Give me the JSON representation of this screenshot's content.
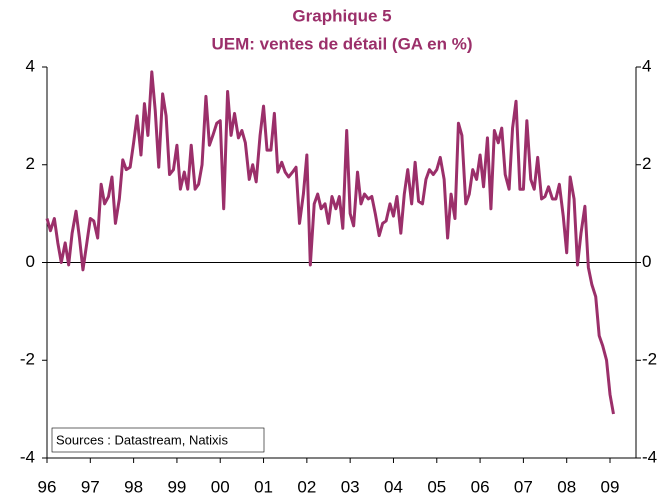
{
  "chart_data": {
    "type": "line",
    "title": "Graphique 5",
    "subtitle": "UEM: ventes de détail (GA en %)",
    "annotation": "Sources : Datastream, Natixis",
    "x": [
      1996,
      1996.08,
      1996.17,
      1996.25,
      1996.33,
      1996.42,
      1996.5,
      1996.58,
      1996.67,
      1996.75,
      1996.83,
      1996.92,
      1997,
      1997.08,
      1997.17,
      1997.25,
      1997.33,
      1997.42,
      1997.5,
      1997.58,
      1997.67,
      1997.75,
      1997.83,
      1997.92,
      1998,
      1998.08,
      1998.17,
      1998.25,
      1998.33,
      1998.42,
      1998.5,
      1998.58,
      1998.67,
      1998.75,
      1998.83,
      1998.92,
      1999,
      1999.08,
      1999.17,
      1999.25,
      1999.33,
      1999.42,
      1999.5,
      1999.58,
      1999.67,
      1999.75,
      1999.83,
      1999.92,
      2000,
      2000.08,
      2000.17,
      2000.25,
      2000.33,
      2000.42,
      2000.5,
      2000.58,
      2000.67,
      2000.75,
      2000.83,
      2000.92,
      2001,
      2001.08,
      2001.17,
      2001.25,
      2001.33,
      2001.42,
      2001.5,
      2001.58,
      2001.67,
      2001.75,
      2001.83,
      2001.92,
      2002,
      2002.08,
      2002.17,
      2002.25,
      2002.33,
      2002.42,
      2002.5,
      2002.58,
      2002.67,
      2002.75,
      2002.83,
      2002.92,
      2003,
      2003.08,
      2003.17,
      2003.25,
      2003.33,
      2003.42,
      2003.5,
      2003.58,
      2003.67,
      2003.75,
      2003.83,
      2003.92,
      2004,
      2004.08,
      2004.17,
      2004.25,
      2004.33,
      2004.42,
      2004.5,
      2004.58,
      2004.67,
      2004.75,
      2004.83,
      2004.92,
      2005,
      2005.08,
      2005.17,
      2005.25,
      2005.33,
      2005.42,
      2005.5,
      2005.58,
      2005.67,
      2005.75,
      2005.83,
      2005.92,
      2006,
      2006.08,
      2006.17,
      2006.25,
      2006.33,
      2006.42,
      2006.5,
      2006.58,
      2006.67,
      2006.75,
      2006.83,
      2006.92,
      2007,
      2007.08,
      2007.17,
      2007.25,
      2007.33,
      2007.42,
      2007.5,
      2007.58,
      2007.67,
      2007.75,
      2007.83,
      2007.92,
      2008,
      2008.08,
      2008.17,
      2008.25,
      2008.33,
      2008.42,
      2008.5,
      2008.58,
      2008.67,
      2008.75,
      2008.83,
      2008.92,
      2009,
      2009.08
    ],
    "series": [
      {
        "name": "UEM",
        "color": "#9b2f6a",
        "values": [
          0.9,
          0.65,
          0.9,
          0.4,
          0.0,
          0.4,
          -0.05,
          0.6,
          1.05,
          0.5,
          -0.15,
          0.4,
          0.9,
          0.85,
          0.5,
          1.6,
          1.2,
          1.35,
          1.75,
          0.8,
          1.3,
          2.1,
          1.9,
          1.95,
          2.45,
          3.0,
          2.2,
          3.25,
          2.6,
          3.9,
          3.1,
          1.95,
          3.45,
          3.0,
          1.8,
          1.9,
          2.4,
          1.5,
          1.85,
          1.5,
          2.4,
          1.5,
          1.6,
          2.0,
          3.4,
          2.4,
          2.6,
          2.85,
          2.9,
          1.1,
          3.5,
          2.6,
          3.05,
          2.55,
          2.7,
          2.45,
          1.7,
          2.0,
          1.65,
          2.6,
          3.2,
          2.3,
          2.3,
          3.05,
          1.85,
          2.05,
          1.85,
          1.75,
          1.85,
          1.95,
          0.8,
          1.4,
          2.2,
          -0.05,
          1.2,
          1.4,
          1.1,
          1.2,
          0.8,
          1.35,
          1.1,
          1.35,
          0.7,
          2.7,
          1.0,
          0.75,
          1.85,
          1.2,
          1.4,
          1.3,
          1.35,
          1.0,
          0.55,
          0.8,
          0.85,
          1.2,
          0.95,
          1.35,
          0.6,
          1.4,
          1.9,
          1.2,
          2.05,
          1.25,
          1.2,
          1.7,
          1.9,
          1.8,
          1.9,
          2.15,
          1.7,
          0.5,
          1.4,
          0.9,
          2.85,
          2.6,
          1.2,
          1.4,
          1.9,
          1.7,
          2.2,
          1.55,
          2.55,
          1.1,
          2.7,
          2.45,
          2.75,
          1.8,
          1.5,
          2.75,
          3.3,
          1.5,
          1.5,
          2.9,
          1.7,
          1.5,
          2.15,
          1.3,
          1.35,
          1.55,
          1.3,
          1.3,
          1.6,
          0.95,
          0.2,
          1.75,
          1.3,
          -0.05,
          0.6,
          1.15,
          -0.1,
          -0.45,
          -0.7,
          -1.5,
          -1.7,
          -2.0,
          -2.7,
          -3.1
        ]
      }
    ],
    "xlim": [
      1996,
      2009.6
    ],
    "xticks": [
      {
        "value": 1996,
        "label": "96"
      },
      {
        "value": 1997,
        "label": "97"
      },
      {
        "value": 1998,
        "label": "98"
      },
      {
        "value": 1999,
        "label": "99"
      },
      {
        "value": 2000,
        "label": "00"
      },
      {
        "value": 2001,
        "label": "01"
      },
      {
        "value": 2002,
        "label": "02"
      },
      {
        "value": 2003,
        "label": "03"
      },
      {
        "value": 2004,
        "label": "04"
      },
      {
        "value": 2005,
        "label": "05"
      },
      {
        "value": 2006,
        "label": "06"
      },
      {
        "value": 2007,
        "label": "07"
      },
      {
        "value": 2008,
        "label": "08"
      },
      {
        "value": 2009,
        "label": "09"
      }
    ],
    "ylim": [
      -4,
      4
    ],
    "yticks": [
      -4,
      -2,
      0,
      2,
      4
    ],
    "y2lim": [
      -4,
      4
    ],
    "y2ticks": [
      -4,
      -2,
      0,
      2,
      4
    ]
  }
}
